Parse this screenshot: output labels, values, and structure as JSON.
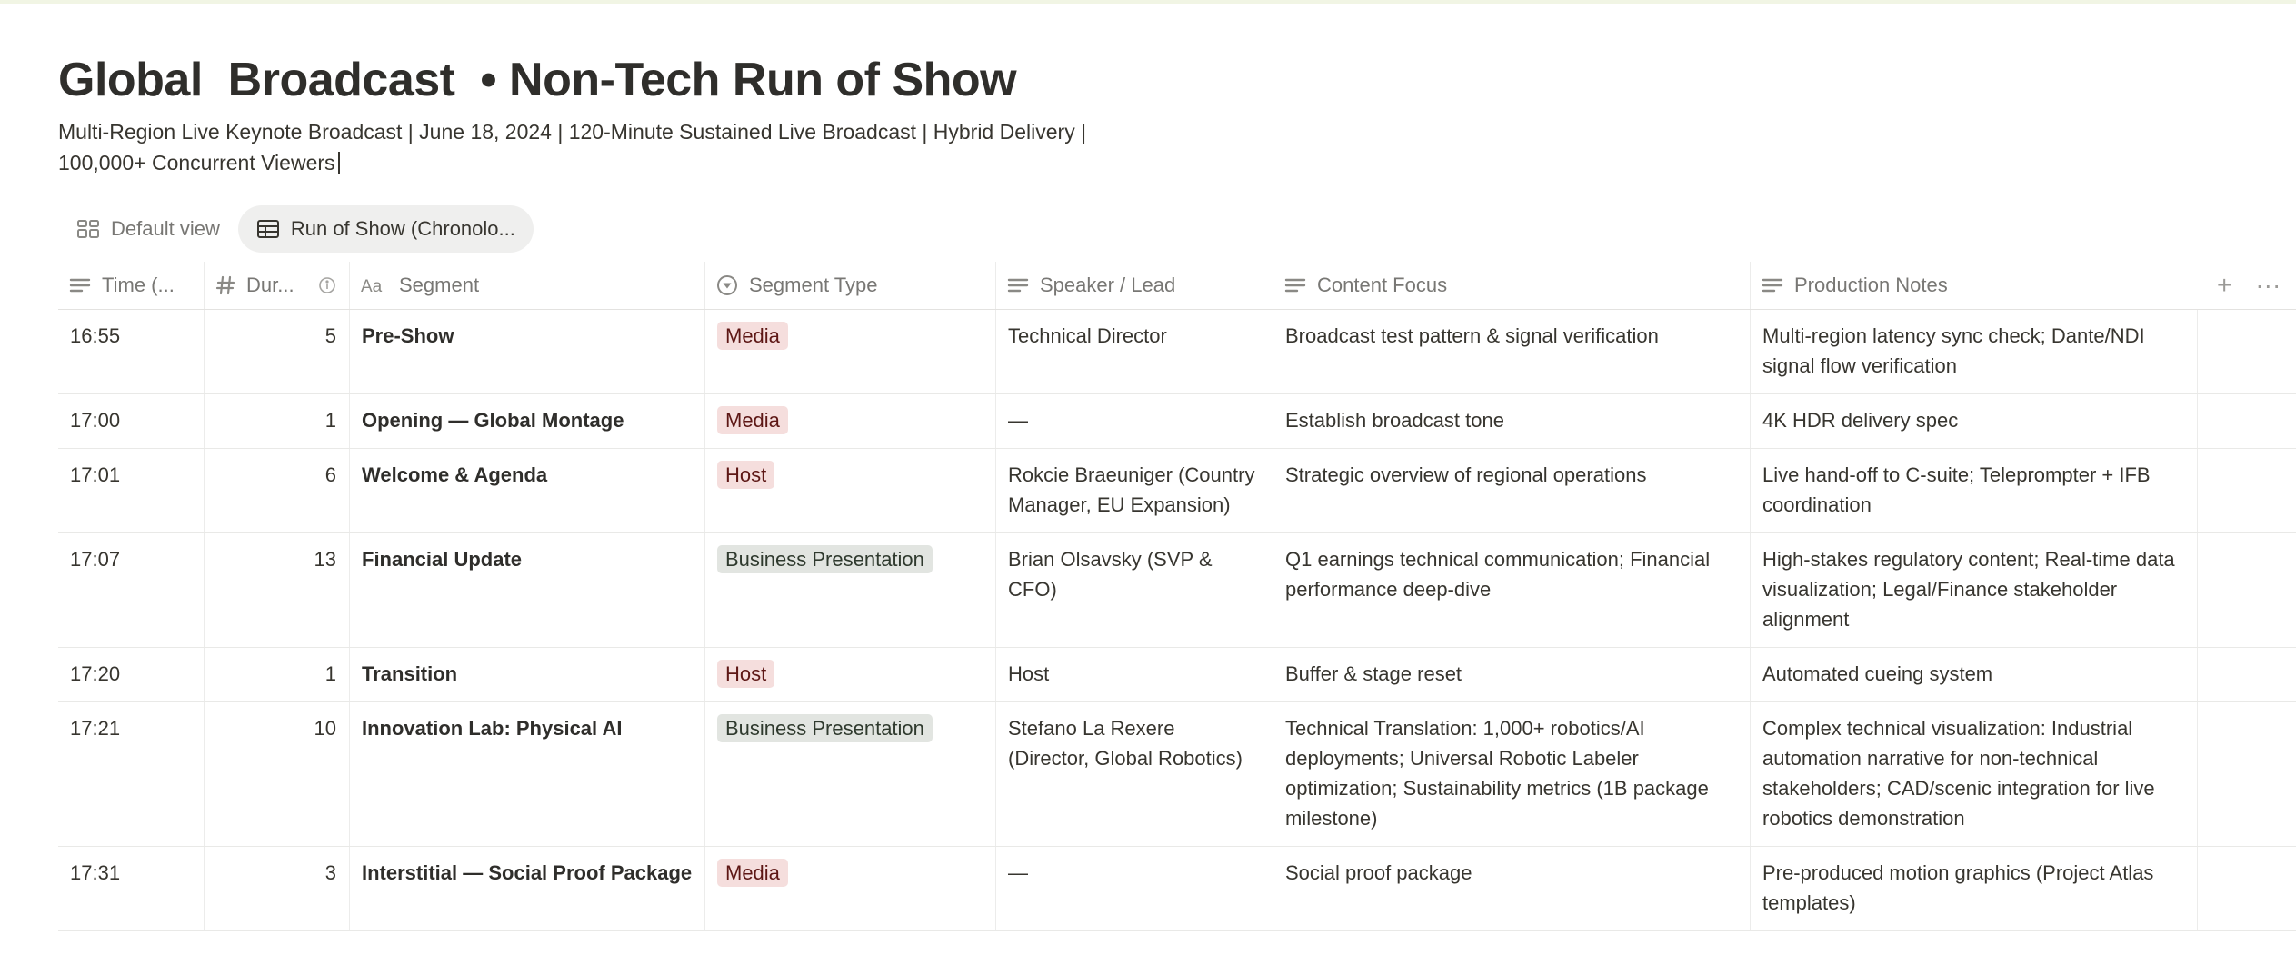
{
  "page": {
    "title": "Global  Broadcast  • Non-Tech Run of Show",
    "description_line1": "Multi-Region Live Keynote Broadcast | June 18, 2024 | 120-Minute Sustained Live Broadcast | Hybrid Delivery |",
    "description_line2": "100,000+ Concurrent Viewers"
  },
  "views": [
    {
      "label": "Default view",
      "icon": "gallery-icon",
      "active": false
    },
    {
      "label": "Run of Show (Chronolo...",
      "icon": "table-icon",
      "active": true
    }
  ],
  "columns": [
    {
      "label": "Time (...",
      "icon": "text-lines-icon"
    },
    {
      "label": "Dur...",
      "icon": "number-hash-icon"
    },
    {
      "label": "Segment",
      "icon": "title-aa-icon"
    },
    {
      "label": "Segment Type",
      "icon": "select-icon"
    },
    {
      "label": "Speaker / Lead",
      "icon": "text-lines-icon"
    },
    {
      "label": "Content Focus",
      "icon": "text-lines-icon"
    },
    {
      "label": "Production Notes",
      "icon": "text-lines-icon"
    }
  ],
  "header_actions": {
    "add": "+",
    "more": "···"
  },
  "tag_colors": {
    "Media": "#f5dedd",
    "Host": "#f5dedd",
    "Business Presentation": "#e2e5e1"
  },
  "rows": [
    {
      "time": "16:55",
      "duration": "5",
      "segment": "Pre-Show",
      "type": "Media",
      "type_class": "media",
      "speaker": "Technical Director",
      "content": "Broadcast test pattern & signal verification",
      "notes": "Multi-region latency sync check; Dante/NDI signal flow verification"
    },
    {
      "time": "17:00",
      "duration": "1",
      "segment": "Opening — Global Montage",
      "type": "Media",
      "type_class": "media",
      "speaker": "—",
      "content": "Establish broadcast tone",
      "notes": "4K HDR delivery spec"
    },
    {
      "time": "17:01",
      "duration": "6",
      "segment": "Welcome & Agenda",
      "type": "Host",
      "type_class": "host",
      "speaker": "Rokcie Braeuniger (Country Manager, EU Expansion)",
      "content": "Strategic overview of regional operations",
      "notes": "Live hand-off to C-suite; Teleprompter + IFB coordination"
    },
    {
      "time": "17:07",
      "duration": "13",
      "segment": "Financial Update",
      "type": "Business Presentation",
      "type_class": "biz",
      "speaker": "Brian Olsavsky (SVP & CFO)",
      "content": "Q1 earnings technical communication; Financial performance deep-dive",
      "notes": "High-stakes regulatory content; Real-time data visualization; Legal/Finance stakeholder alignment"
    },
    {
      "time": "17:20",
      "duration": "1",
      "segment": "Transition",
      "type": "Host",
      "type_class": "host",
      "speaker": "Host",
      "content": "Buffer & stage reset",
      "notes": "Automated cueing system"
    },
    {
      "time": "17:21",
      "duration": "10",
      "segment": "Innovation Lab: Physical AI",
      "type": "Business Presentation",
      "type_class": "biz",
      "speaker": "Stefano La Rexere (Director, Global Robotics)",
      "content": "Technical Translation: 1,000+ robotics/AI deployments; Universal Robotic Labeler optimization; Sustainability metrics (1B package milestone)",
      "notes": "Complex technical visualization: Industrial automation narrative for non-technical stakeholders; CAD/scenic integration for live robotics demonstration"
    },
    {
      "time": "17:31",
      "duration": "3",
      "segment": "Interstitial — Social Proof Package",
      "type": "Media",
      "type_class": "media",
      "speaker": "—",
      "content": "Social proof package",
      "notes": "Pre-produced motion graphics (Project Atlas templates)"
    }
  ]
}
